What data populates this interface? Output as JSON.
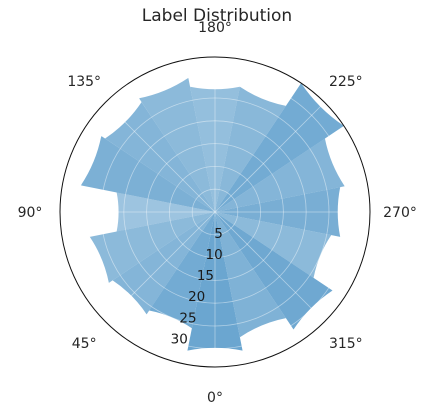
{
  "chart_data": {
    "type": "polar-bar",
    "title": "Label Distribution",
    "theta_direction": "clockwise",
    "theta_zero_location": "bottom",
    "theta_tick_labels": [
      "0°",
      "45°",
      "90°",
      "135°",
      "180°",
      "225°",
      "270°",
      "315°"
    ],
    "r_tick_labels": [
      "5",
      "10",
      "15",
      "20",
      "25",
      "30"
    ],
    "r_ticks": [
      5,
      10,
      15,
      20,
      25,
      30
    ],
    "rlim": [
      0,
      34
    ],
    "grid": true,
    "bar_color": "#5b9ccb",
    "bar_width_deg": 22.5,
    "series": [
      {
        "theta": [
          0,
          22.5,
          45,
          67.5,
          90,
          112.5,
          135,
          157.5,
          180,
          202.5,
          225,
          247.5,
          270,
          292.5,
          315,
          337.5
        ],
        "values": [
          31,
          26,
          27,
          28,
          22,
          30,
          29,
          30,
          28,
          28,
          34,
          29,
          28,
          26,
          31,
          28
        ]
      }
    ]
  }
}
